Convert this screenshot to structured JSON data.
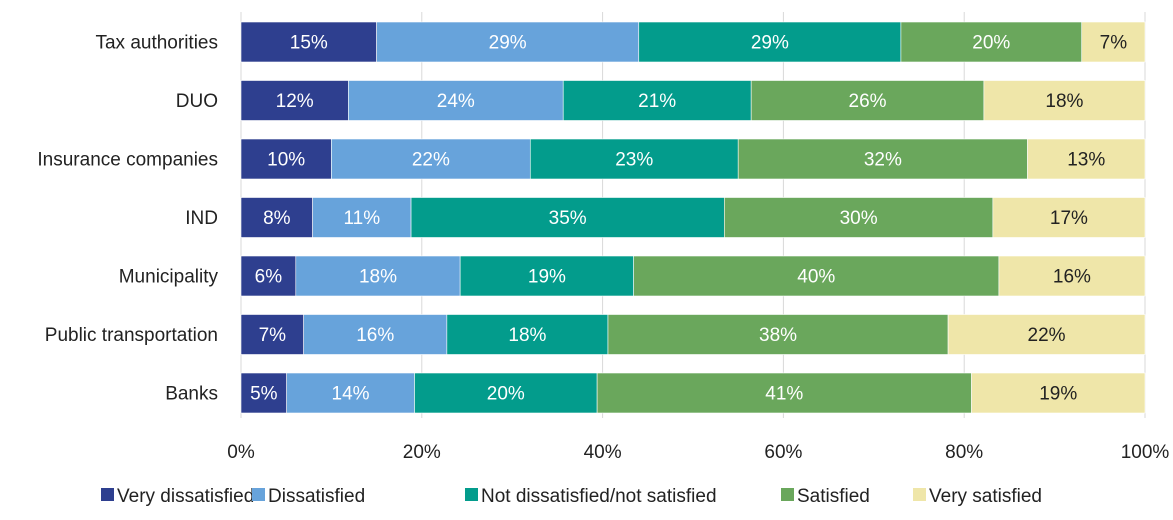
{
  "chart_data": {
    "type": "bar",
    "orientation": "horizontal",
    "stacked": "percent",
    "categories": [
      "Tax authorities",
      "DUO",
      "Insurance companies",
      "IND",
      "Municipality",
      "Public transportation",
      "Banks"
    ],
    "series": [
      {
        "name": "Very dissatisfied",
        "color": "#2E3F8F",
        "label_color": "#ffffff",
        "values": [
          15,
          12,
          10,
          8,
          6,
          7,
          5
        ]
      },
      {
        "name": "Dissatisfied",
        "color": "#67A3DB",
        "label_color": "#ffffff",
        "values": [
          29,
          24,
          22,
          11,
          18,
          16,
          14
        ]
      },
      {
        "name": "Not dissatisfied/not satisfied",
        "color": "#039C8C",
        "label_color": "#ffffff",
        "values": [
          29,
          21,
          23,
          35,
          19,
          18,
          20
        ]
      },
      {
        "name": "Satisfied",
        "color": "#6AA75C",
        "label_color": "#ffffff",
        "values": [
          20,
          26,
          32,
          30,
          40,
          38,
          41
        ]
      },
      {
        "name": "Very satisfied",
        "color": "#EFE6A9",
        "label_color": "#222222",
        "values": [
          7,
          18,
          13,
          17,
          16,
          22,
          19
        ]
      }
    ],
    "x_ticks": [
      "0%",
      "20%",
      "40%",
      "60%",
      "80%",
      "100%"
    ],
    "xlim": [
      0,
      100
    ],
    "grid": true,
    "legend": "bottom",
    "title": "",
    "xlabel": "",
    "ylabel": ""
  }
}
